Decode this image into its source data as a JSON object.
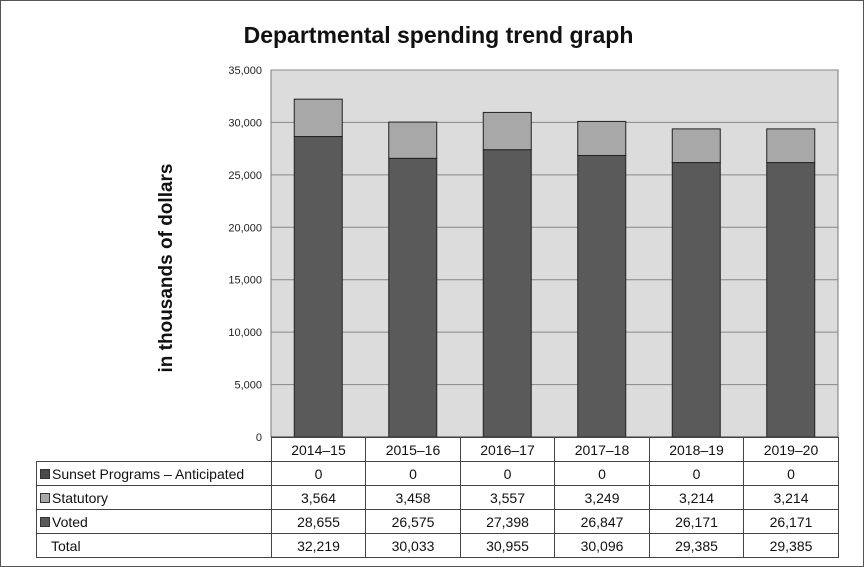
{
  "chart_data": {
    "type": "bar",
    "stacked": true,
    "title": "Departmental spending trend graph",
    "ylabel": "in thousands of dollars",
    "ylim": [
      0,
      35000
    ],
    "yticks": [
      "0",
      "5,000",
      "10,000",
      "15,000",
      "20,000",
      "25,000",
      "30,000",
      "35,000"
    ],
    "grid": true,
    "categories": [
      "2014–15",
      "2015–16",
      "2016–17",
      "2017–18",
      "2018–19",
      "2019–20"
    ],
    "series": [
      {
        "name": "Sunset Programs – Anticipated",
        "values": [
          0,
          0,
          0,
          0,
          0,
          0
        ],
        "labels": [
          "0",
          "0",
          "0",
          "0",
          "0",
          "0"
        ],
        "color": "#4a4a4a"
      },
      {
        "name": "Statutory",
        "values": [
          3564,
          3458,
          3557,
          3249,
          3214,
          3214
        ],
        "labels": [
          "3,564",
          "3,458",
          "3,557",
          "3,249",
          "3,214",
          "3,214"
        ],
        "color": "#a8a8a8"
      },
      {
        "name": "Voted",
        "values": [
          28655,
          26575,
          27398,
          26847,
          26171,
          26171
        ],
        "labels": [
          "28,655",
          "26,575",
          "27,398",
          "26,847",
          "26,171",
          "26,171"
        ],
        "color": "#5a5a5a"
      }
    ],
    "total": {
      "name": "Total",
      "values": [
        32219,
        30033,
        30955,
        30096,
        29385,
        29385
      ],
      "labels": [
        "32,219",
        "30,033",
        "30,955",
        "30,096",
        "29,385",
        "29,385"
      ]
    },
    "colors": {
      "plot_background": "#dcdcdc",
      "gridline": "#888888",
      "bar_outline": "#222222"
    }
  }
}
